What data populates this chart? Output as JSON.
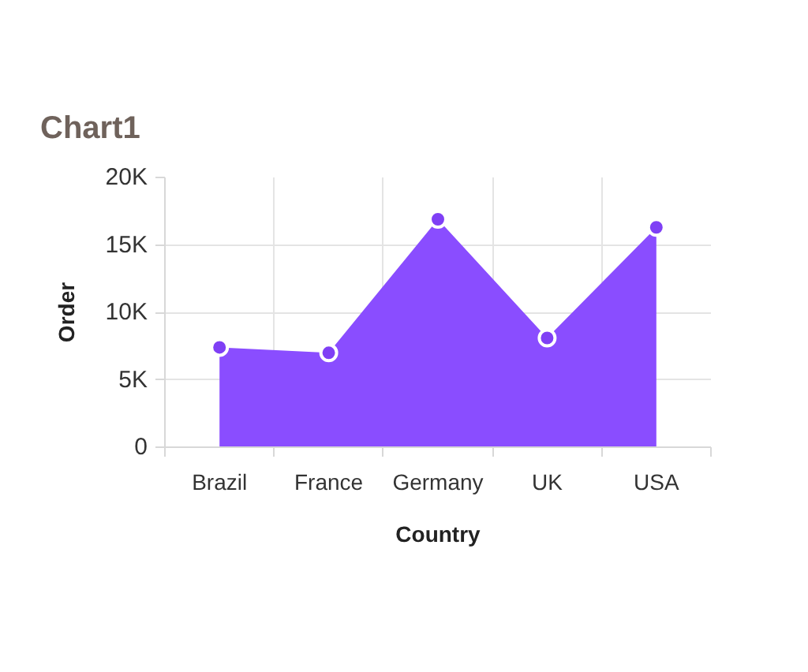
{
  "chart_data": {
    "type": "area",
    "title": "Chart1",
    "xlabel": "Country",
    "ylabel": "Order",
    "categories": [
      "Brazil",
      "France",
      "Germany",
      "UK",
      "USA"
    ],
    "series": [
      {
        "color": "#8a4dff",
        "values": [
          7400,
          7000,
          16900,
          8100,
          16300
        ]
      }
    ],
    "ylim": [
      0,
      20000
    ],
    "yticks": [
      0,
      {
        "value": 5000,
        "label": "5K"
      },
      {
        "value": 10000,
        "label": "10K"
      },
      {
        "value": 15000,
        "label": "15K"
      },
      {
        "value": 20000,
        "label": "20K"
      }
    ],
    "grid": true,
    "marker": "circle"
  }
}
